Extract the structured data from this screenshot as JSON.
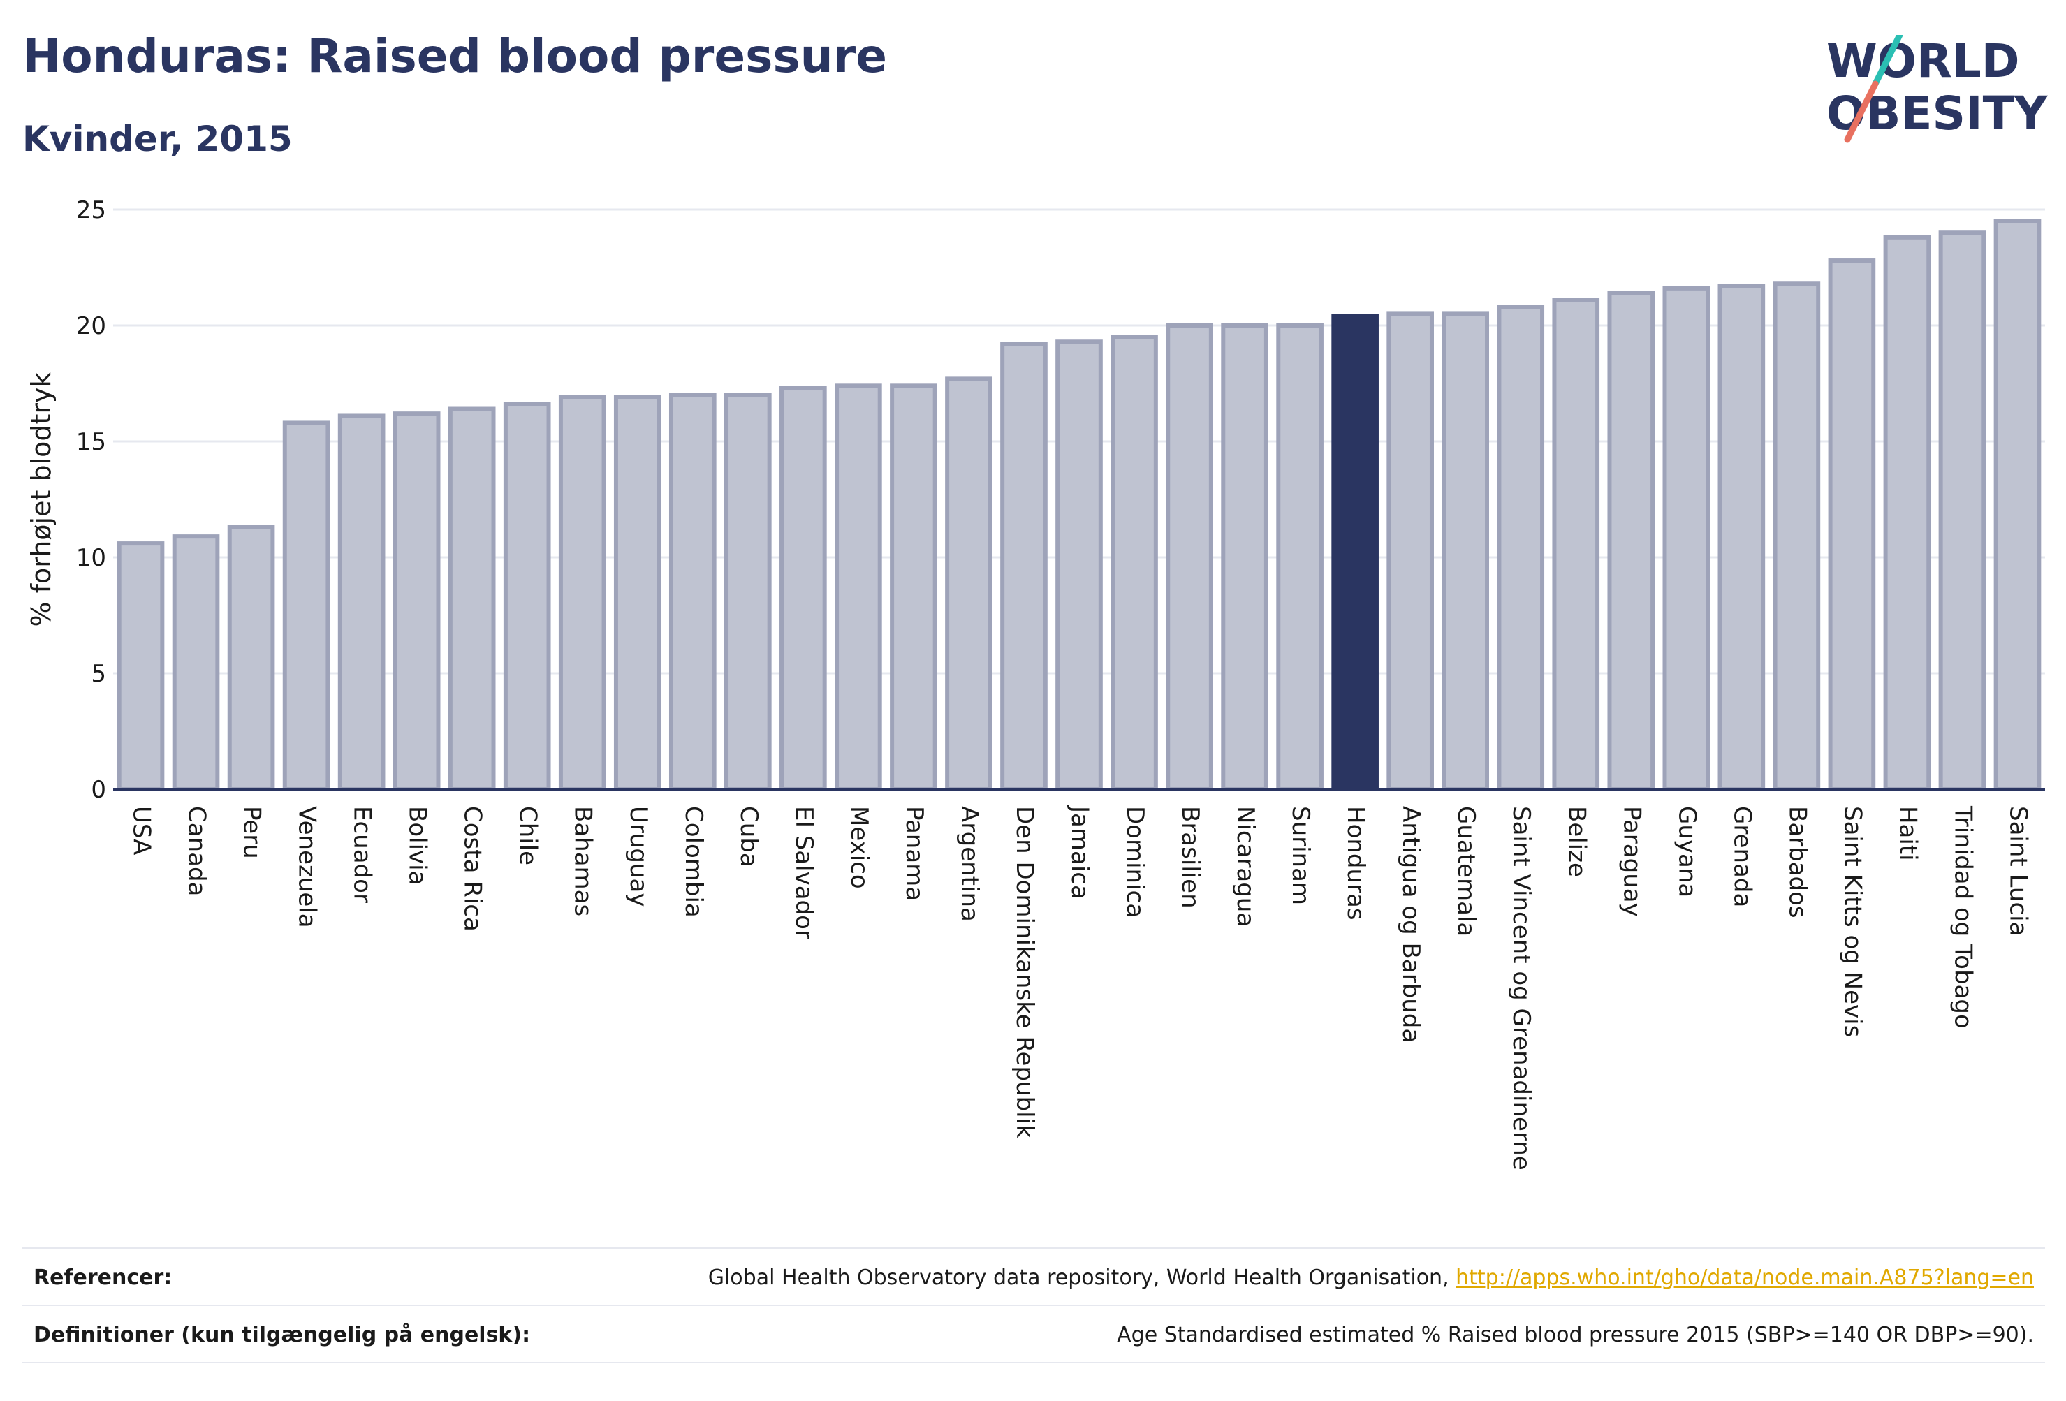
{
  "header": {
    "title": "Honduras: Raised blood pressure",
    "subtitle": "Kvinder, 2015",
    "logo_line1": "WORLD",
    "logo_line2": "OBESITY"
  },
  "colors": {
    "bar": "#bfc3d1",
    "bar_stroke": "#9ea3b9",
    "highlight": "#2a3561",
    "grid": "#e6e8ef",
    "logo_teal": "#2bbfb3",
    "logo_coral": "#e8705f"
  },
  "chart_data": {
    "type": "bar",
    "title": "Honduras: Raised blood pressure",
    "subtitle": "Kvinder, 2015",
    "ylabel": "% forhøjet blodtryk",
    "xlabel": "",
    "ylim": [
      0,
      25
    ],
    "yticks": [
      0,
      5,
      10,
      15,
      20,
      25
    ],
    "grid": true,
    "highlight": "Honduras",
    "categories": [
      "USA",
      "Canada",
      "Peru",
      "Venezuela",
      "Ecuador",
      "Bolivia",
      "Costa Rica",
      "Chile",
      "Bahamas",
      "Uruguay",
      "Colombia",
      "Cuba",
      "El Salvador",
      "Mexico",
      "Panama",
      "Argentina",
      "Den Dominikanske Republik",
      "Jamaica",
      "Dominica",
      "Brasilien",
      "Nicaragua",
      "Surinam",
      "Honduras",
      "Antigua og Barbuda",
      "Guatemala",
      "Saint Vincent og Grenadinerne",
      "Belize",
      "Paraguay",
      "Guyana",
      "Grenada",
      "Barbados",
      "Saint Kitts og Nevis",
      "Haiti",
      "Trinidad og Tobago",
      "Saint Lucia"
    ],
    "values": [
      10.6,
      10.9,
      11.3,
      15.8,
      16.1,
      16.2,
      16.4,
      16.6,
      16.9,
      16.9,
      17.0,
      17.0,
      17.3,
      17.4,
      17.4,
      17.7,
      19.2,
      19.3,
      19.5,
      20.0,
      20.0,
      20.0,
      20.4,
      20.5,
      20.5,
      20.8,
      21.1,
      21.4,
      21.6,
      21.7,
      21.8,
      22.8,
      23.8,
      24.0,
      24.5
    ]
  },
  "footer": {
    "references_label": "Referencer:",
    "references_text": "Global Health Observatory data repository, World Health Organisation, ",
    "references_link": "http://apps.who.int/gho/data/node.main.A875?lang=en",
    "definitions_label": "Definitioner (kun tilgængelig på engelsk):",
    "definitions_text": "Age Standardised estimated % Raised blood pressure 2015 (SBP>=140 OR DBP>=90)."
  }
}
